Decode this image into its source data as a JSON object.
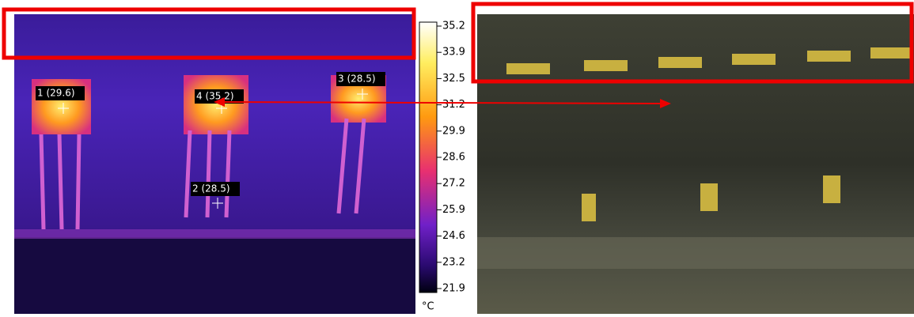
{
  "spots": [
    {
      "label": "1 (29.6)"
    },
    {
      "label": "4 (35.2)"
    },
    {
      "label": "2 (28.5)"
    },
    {
      "label": "3 (28.5)"
    }
  ],
  "scale": {
    "ticks": [
      "35.2",
      "33.9",
      "32.5",
      "31.2",
      "29.9",
      "28.6",
      "27.2",
      "25.9",
      "24.6",
      "23.2",
      "21.9"
    ],
    "unit": "°C"
  }
}
